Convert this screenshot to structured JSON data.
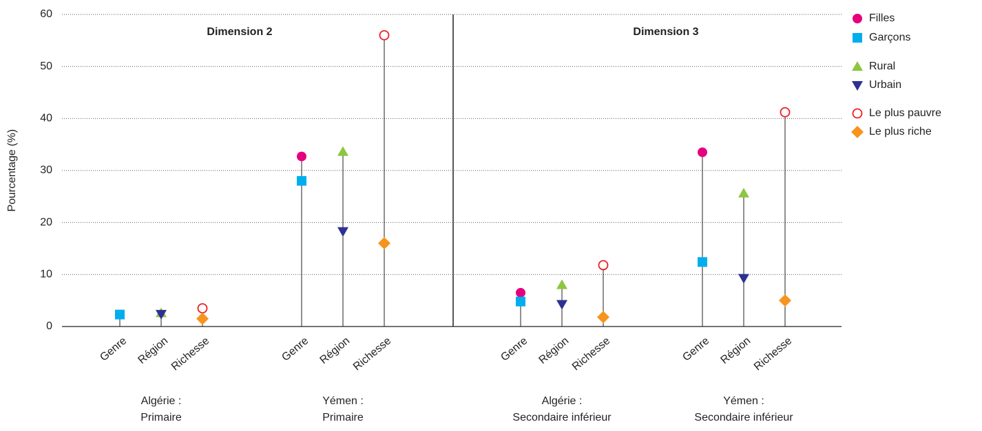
{
  "chart_data": {
    "type": "dotplot",
    "ylabel": "Pourcentage (%)",
    "panels": [
      "Dimension 2",
      "Dimension 3"
    ],
    "groups": [
      [
        "Algérie :",
        "Primaire"
      ],
      [
        "Yémen :",
        "Primaire"
      ],
      [
        "Algérie :",
        "Secondaire inférieur"
      ],
      [
        "Yémen :",
        "Secondaire inférieur"
      ]
    ],
    "categories": [
      "Genre",
      "Région",
      "Richesse",
      "Genre",
      "Région",
      "Richesse",
      "Genre",
      "Région",
      "Richesse",
      "Genre",
      "Région",
      "Richesse"
    ],
    "series": [
      {
        "name": "Filles",
        "color": "#e5007e",
        "marker": "circle",
        "values": [
          2.3,
          null,
          null,
          32.7,
          null,
          null,
          6.5,
          null,
          null,
          33.5,
          null,
          null
        ]
      },
      {
        "name": "Garçons",
        "color": "#00aeef",
        "marker": "square",
        "values": [
          2.3,
          null,
          null,
          28,
          null,
          null,
          4.8,
          null,
          null,
          12.4,
          null,
          null
        ]
      },
      {
        "name": "Rural",
        "color": "#8dc63f",
        "marker": "triangle-up",
        "values": [
          null,
          2.6,
          null,
          null,
          33.6,
          null,
          null,
          8,
          null,
          null,
          25.6,
          null
        ]
      },
      {
        "name": "Urbain",
        "color": "#2e3192",
        "marker": "triangle-down",
        "values": [
          null,
          2.4,
          null,
          null,
          18.3,
          null,
          null,
          4.3,
          null,
          null,
          9.3,
          null
        ]
      },
      {
        "name": "Le plus pauvre",
        "color": "#ed1c24",
        "marker": "circle-open",
        "values": [
          null,
          null,
          3.5,
          null,
          null,
          56,
          null,
          null,
          11.8,
          null,
          null,
          41.2
        ]
      },
      {
        "name": "Le plus riche",
        "color": "#f7941d",
        "marker": "diamond",
        "values": [
          null,
          null,
          1.5,
          null,
          null,
          16,
          null,
          null,
          1.8,
          null,
          null,
          5
        ]
      }
    ],
    "ylim": [
      0,
      60
    ],
    "yticks": [
      0,
      10,
      20,
      30,
      40,
      50,
      60
    ],
    "grid": true
  }
}
